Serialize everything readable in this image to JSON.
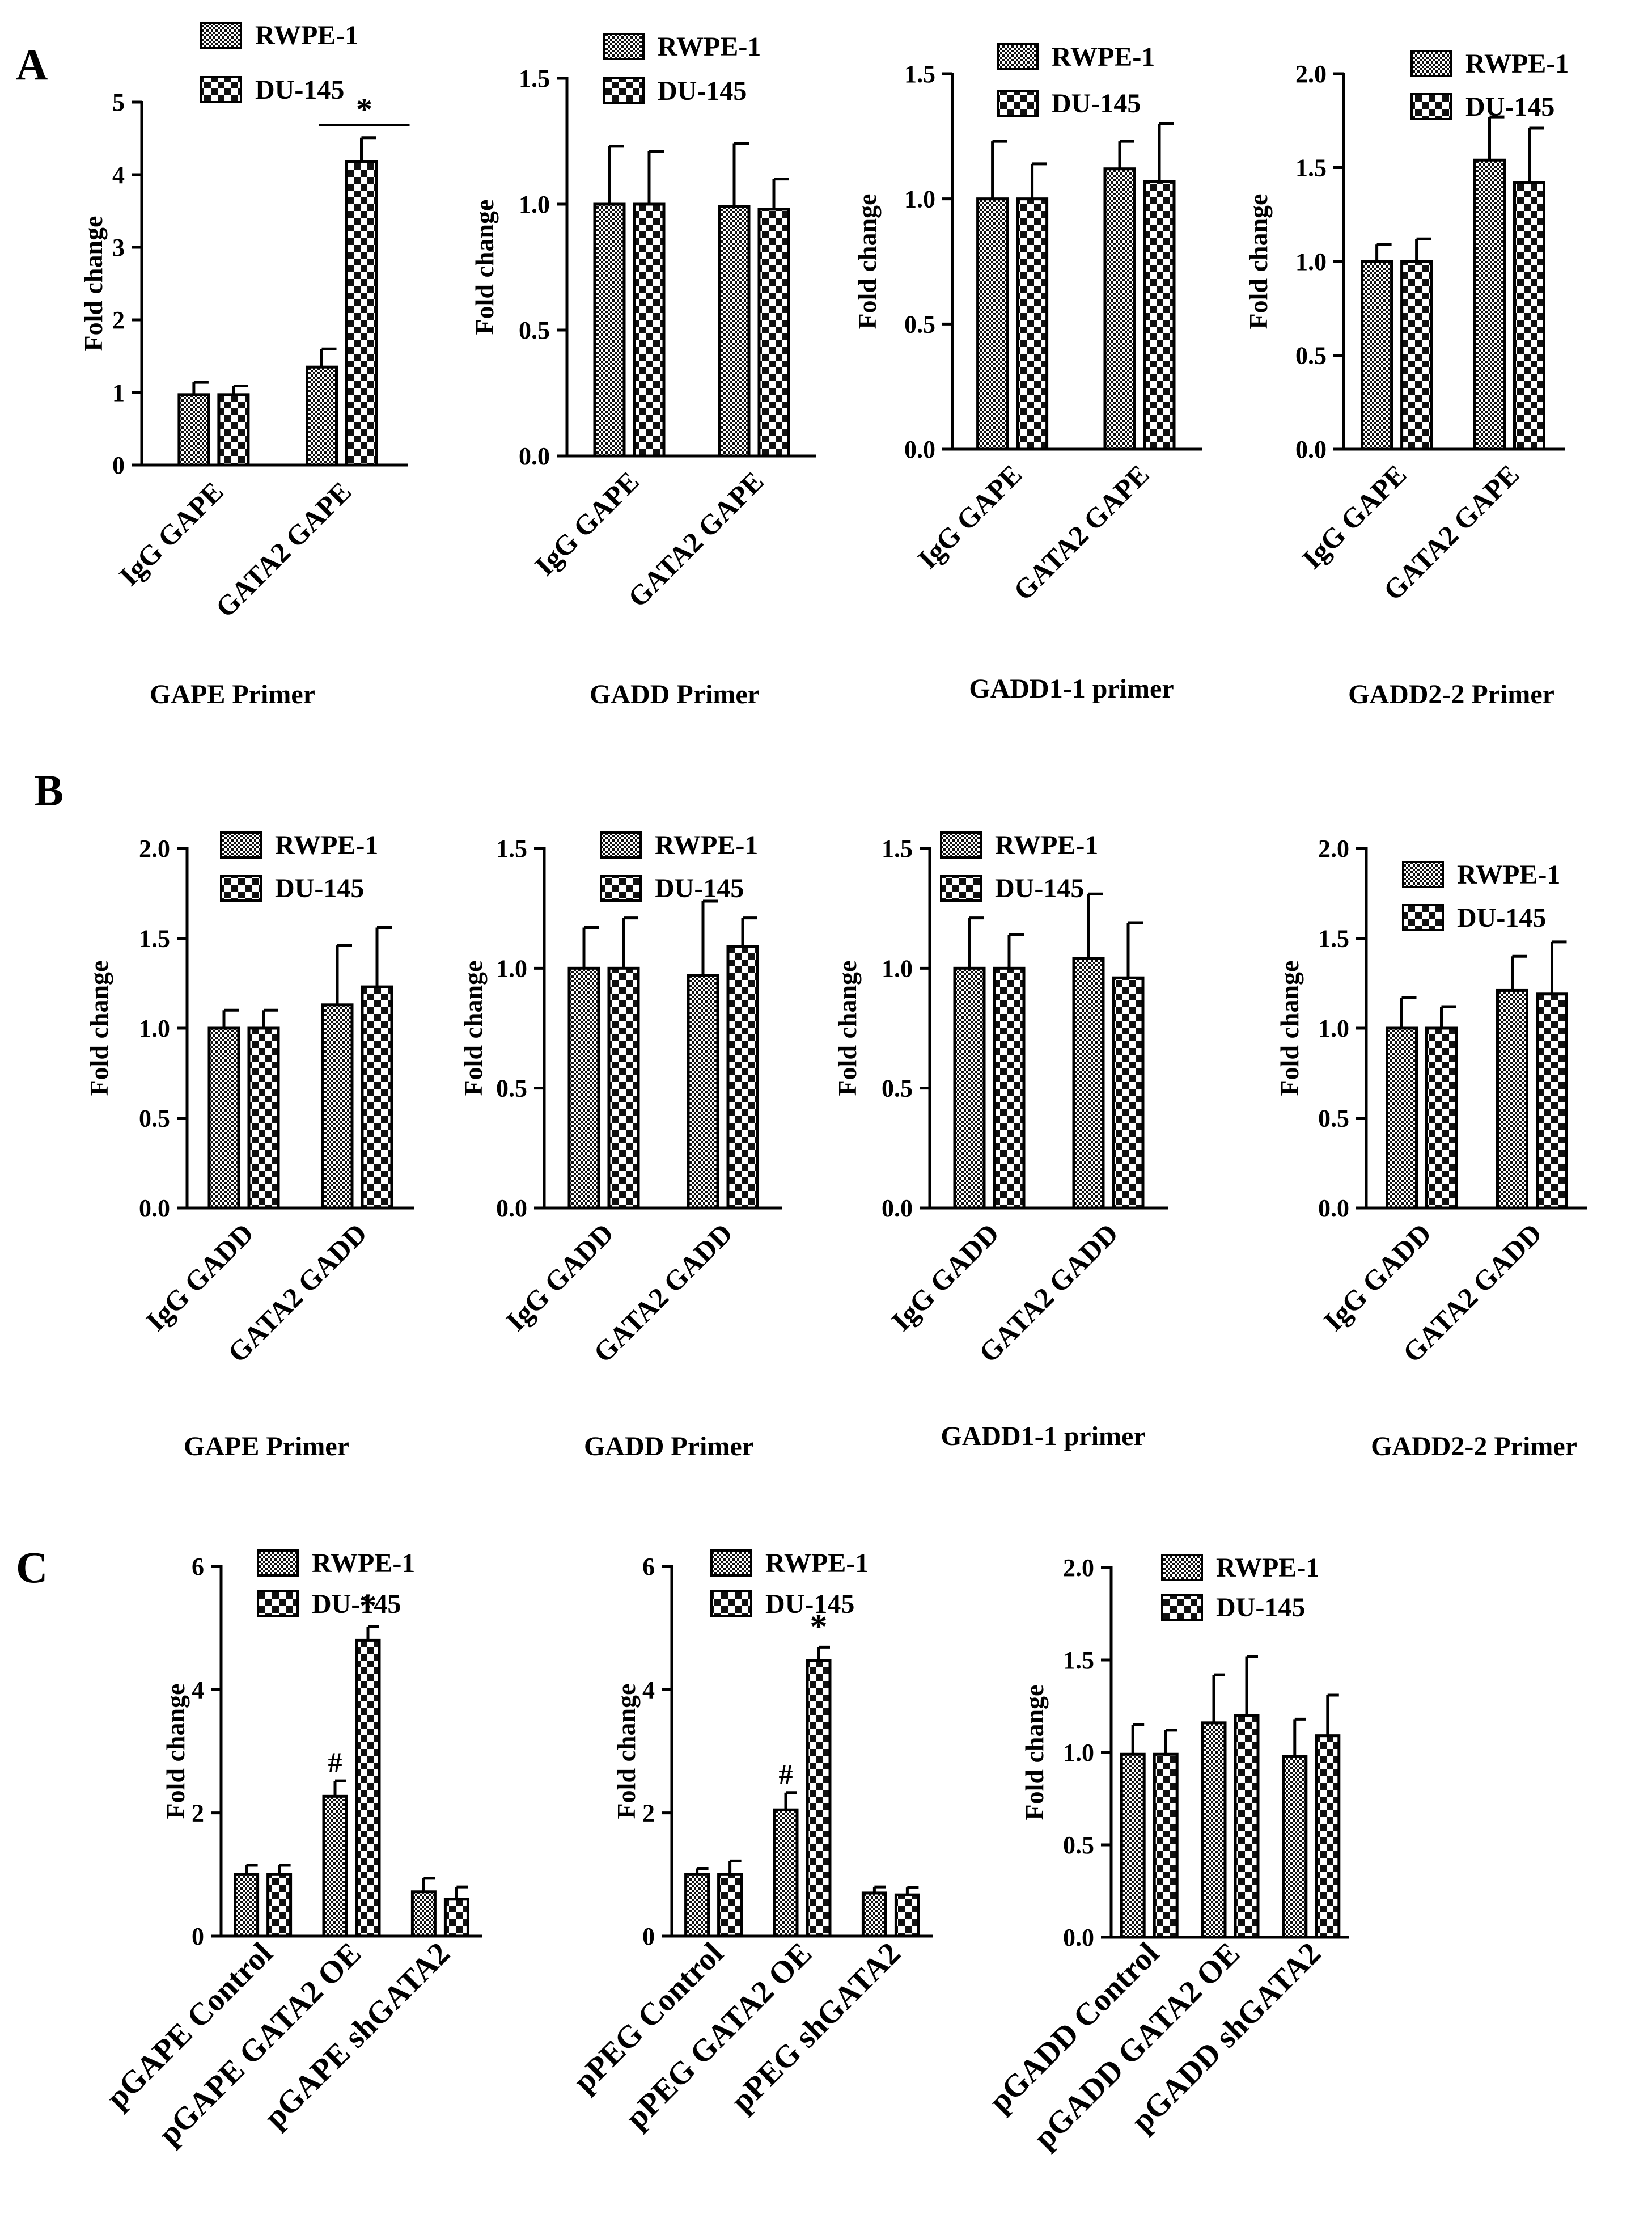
{
  "panels": [
    {
      "letter": "A"
    },
    {
      "letter": "B"
    },
    {
      "letter": "C"
    }
  ],
  "colors": {
    "bar_fill_base": "#ffffff",
    "bar_pattern_light": "#000000",
    "axis": "#000000"
  },
  "chart_data": [
    {
      "type": "bar",
      "panel": "A",
      "title": "GAPE Primer",
      "ylabel": "Fold change",
      "ylim": [
        0,
        5
      ],
      "yticks": [
        "0",
        "1",
        "2",
        "3",
        "4",
        "5"
      ],
      "categories": [
        "IgG GAPE",
        "GATA2 GAPE"
      ],
      "legend": [
        "RWPE-1",
        "DU-145"
      ],
      "series": [
        {
          "name": "RWPE-1",
          "pattern": "fine",
          "values": [
            0.97,
            1.35
          ],
          "errors": [
            0.17,
            0.25
          ]
        },
        {
          "name": "DU-145",
          "pattern": "checker",
          "values": [
            0.97,
            4.18
          ],
          "errors": [
            0.12,
            0.33
          ]
        }
      ],
      "annotations": [
        {
          "text": "*",
          "category": 1,
          "series": "bracket"
        }
      ]
    },
    {
      "type": "bar",
      "panel": "A",
      "title": "GADD Primer",
      "ylabel": "Fold change",
      "ylim": [
        0,
        1.5
      ],
      "yticks": [
        "0.0",
        "0.5",
        "1.0",
        "1.5"
      ],
      "categories": [
        "IgG GAPE",
        "GATA2 GAPE"
      ],
      "legend": [
        "RWPE-1",
        "DU-145"
      ],
      "series": [
        {
          "name": "RWPE-1",
          "pattern": "fine",
          "values": [
            1.0,
            0.99
          ],
          "errors": [
            0.23,
            0.25
          ]
        },
        {
          "name": "DU-145",
          "pattern": "checker",
          "values": [
            1.0,
            0.98
          ],
          "errors": [
            0.21,
            0.12
          ]
        }
      ],
      "annotations": []
    },
    {
      "type": "bar",
      "panel": "A",
      "title": "GADD1-1 primer",
      "ylabel": "Fold change",
      "ylim": [
        0,
        1.5
      ],
      "yticks": [
        "0.0",
        "0.5",
        "1.0",
        "1.5"
      ],
      "categories": [
        "IgG GAPE",
        "GATA2 GAPE"
      ],
      "legend": [
        "RWPE-1",
        "DU-145"
      ],
      "series": [
        {
          "name": "RWPE-1",
          "pattern": "fine",
          "values": [
            1.0,
            1.12
          ],
          "errors": [
            0.23,
            0.11
          ]
        },
        {
          "name": "DU-145",
          "pattern": "checker",
          "values": [
            1.0,
            1.07
          ],
          "errors": [
            0.14,
            0.23
          ]
        }
      ],
      "annotations": []
    },
    {
      "type": "bar",
      "panel": "A",
      "title": "GADD2-2 Primer",
      "ylabel": "Fold change",
      "ylim": [
        0,
        2.0
      ],
      "yticks": [
        "0.0",
        "0.5",
        "1.0",
        "1.5",
        "2.0"
      ],
      "categories": [
        "IgG GAPE",
        "GATA2 GAPE"
      ],
      "legend": [
        "RWPE-1",
        "DU-145"
      ],
      "series": [
        {
          "name": "RWPE-1",
          "pattern": "fine",
          "values": [
            1.0,
            1.54
          ],
          "errors": [
            0.09,
            0.23
          ]
        },
        {
          "name": "DU-145",
          "pattern": "checker",
          "values": [
            1.0,
            1.42
          ],
          "errors": [
            0.12,
            0.29
          ]
        }
      ],
      "annotations": []
    },
    {
      "type": "bar",
      "panel": "B",
      "title": "GAPE Primer",
      "ylabel": "Fold change",
      "ylim": [
        0,
        2.0
      ],
      "yticks": [
        "0.0",
        "0.5",
        "1.0",
        "1.5",
        "2.0"
      ],
      "categories": [
        "IgG GADD",
        "GATA2 GADD"
      ],
      "legend": [
        "RWPE-1",
        "DU-145"
      ],
      "series": [
        {
          "name": "RWPE-1",
          "pattern": "fine",
          "values": [
            1.0,
            1.13
          ],
          "errors": [
            0.1,
            0.33
          ]
        },
        {
          "name": "DU-145",
          "pattern": "checker",
          "values": [
            1.0,
            1.23
          ],
          "errors": [
            0.1,
            0.33
          ]
        }
      ],
      "annotations": []
    },
    {
      "type": "bar",
      "panel": "B",
      "title": "GADD Primer",
      "ylabel": "Fold change",
      "ylim": [
        0,
        1.5
      ],
      "yticks": [
        "0.0",
        "0.5",
        "1.0",
        "1.5"
      ],
      "categories": [
        "IgG GADD",
        "GATA2 GADD"
      ],
      "legend": [
        "RWPE-1",
        "DU-145"
      ],
      "series": [
        {
          "name": "RWPE-1",
          "pattern": "fine",
          "values": [
            1.0,
            0.97
          ],
          "errors": [
            0.17,
            0.31
          ]
        },
        {
          "name": "DU-145",
          "pattern": "checker",
          "values": [
            1.0,
            1.09
          ],
          "errors": [
            0.21,
            0.12
          ]
        }
      ],
      "annotations": []
    },
    {
      "type": "bar",
      "panel": "B",
      "title": "GADD1-1 primer",
      "ylabel": "Fold change",
      "ylim": [
        0,
        1.5
      ],
      "yticks": [
        "0.0",
        "0.5",
        "1.0",
        "1.5"
      ],
      "categories": [
        "IgG GADD",
        "GATA2 GADD"
      ],
      "legend": [
        "RWPE-1",
        "DU-145"
      ],
      "series": [
        {
          "name": "RWPE-1",
          "pattern": "fine",
          "values": [
            1.0,
            1.04
          ],
          "errors": [
            0.21,
            0.27
          ]
        },
        {
          "name": "DU-145",
          "pattern": "checker",
          "values": [
            1.0,
            0.96
          ],
          "errors": [
            0.14,
            0.23
          ]
        }
      ],
      "annotations": []
    },
    {
      "type": "bar",
      "panel": "B",
      "title": "GADD2-2 Primer",
      "ylabel": "Fold change",
      "ylim": [
        0,
        2.0
      ],
      "yticks": [
        "0.0",
        "0.5",
        "1.0",
        "1.5",
        "2.0"
      ],
      "categories": [
        "IgG GADD",
        "GATA2 GADD"
      ],
      "legend": [
        "RWPE-1",
        "DU-145"
      ],
      "series": [
        {
          "name": "RWPE-1",
          "pattern": "fine",
          "values": [
            1.0,
            1.21
          ],
          "errors": [
            0.17,
            0.19
          ]
        },
        {
          "name": "DU-145",
          "pattern": "checker",
          "values": [
            1.0,
            1.19
          ],
          "errors": [
            0.12,
            0.29
          ]
        }
      ],
      "annotations": []
    },
    {
      "type": "bar",
      "panel": "C",
      "title": "",
      "ylabel": "Fold change",
      "ylim": [
        0,
        6
      ],
      "yticks": [
        "0",
        "2",
        "4",
        "6"
      ],
      "categories": [
        "pGAPE Control",
        "pGAPE GATA2 OE",
        "pGAPE shGATA2"
      ],
      "legend": [
        "RWPE-1",
        "DU-145"
      ],
      "series": [
        {
          "name": "RWPE-1",
          "pattern": "fine",
          "values": [
            1.0,
            2.27,
            0.72
          ],
          "errors": [
            0.15,
            0.25,
            0.22
          ]
        },
        {
          "name": "DU-145",
          "pattern": "checker",
          "values": [
            1.0,
            4.8,
            0.6
          ],
          "errors": [
            0.15,
            0.22,
            0.2
          ]
        }
      ],
      "annotations": [
        {
          "text": "#",
          "category": 1,
          "series": 0
        },
        {
          "text": "*",
          "category": 1,
          "series": 1
        }
      ]
    },
    {
      "type": "bar",
      "panel": "C",
      "title": "",
      "ylabel": "Fold change",
      "ylim": [
        0,
        6
      ],
      "yticks": [
        "0",
        "2",
        "4",
        "6"
      ],
      "categories": [
        "pPEG Control",
        "pPEG GATA2 OE",
        "pPEG shGATA2"
      ],
      "legend": [
        "RWPE-1",
        "DU-145"
      ],
      "series": [
        {
          "name": "RWPE-1",
          "pattern": "fine",
          "values": [
            1.0,
            2.05,
            0.7
          ],
          "errors": [
            0.1,
            0.28,
            0.1
          ]
        },
        {
          "name": "DU-145",
          "pattern": "checker",
          "values": [
            1.0,
            4.47,
            0.67
          ],
          "errors": [
            0.22,
            0.22,
            0.12
          ]
        }
      ],
      "annotations": [
        {
          "text": "#",
          "category": 1,
          "series": 0
        },
        {
          "text": "*",
          "category": 1,
          "series": 1
        }
      ]
    },
    {
      "type": "bar",
      "panel": "C",
      "title": "",
      "ylabel": "Fold change",
      "ylim": [
        0,
        2.0
      ],
      "yticks": [
        "0.0",
        "0.5",
        "1.0",
        "1.5",
        "2.0"
      ],
      "categories": [
        "pGADD Control",
        "pGADD GATA2 OE",
        "pGADD shGATA2"
      ],
      "legend": [
        "RWPE-1",
        "DU-145"
      ],
      "series": [
        {
          "name": "RWPE-1",
          "pattern": "fine",
          "values": [
            0.99,
            1.16,
            0.98
          ],
          "errors": [
            0.16,
            0.26,
            0.2
          ]
        },
        {
          "name": "DU-145",
          "pattern": "checker",
          "values": [
            0.99,
            1.2,
            1.09
          ],
          "errors": [
            0.13,
            0.32,
            0.22
          ]
        }
      ],
      "annotations": []
    }
  ]
}
